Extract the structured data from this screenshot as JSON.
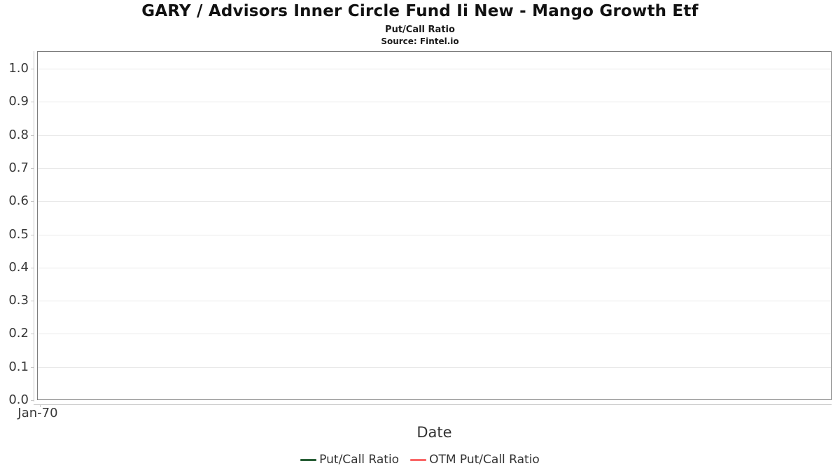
{
  "header": {
    "title": "GARY / Advisors Inner Circle Fund Ii New - Mango Growth Etf",
    "subtitle": "Put/Call Ratio",
    "source": "Source: Fintel.io"
  },
  "chart_data": {
    "type": "line",
    "title": "GARY / Advisors Inner Circle Fund Ii New - Mango Growth Etf",
    "subtitle": "Put/Call Ratio",
    "source": "Source: Fintel.io",
    "xlabel": "Date",
    "ylabel": "",
    "ylim": [
      0.0,
      1.0
    ],
    "yticks": [
      "1.0",
      "0.9",
      "0.8",
      "0.7",
      "0.6",
      "0.5",
      "0.4",
      "0.3",
      "0.2",
      "0.1",
      "0.0"
    ],
    "xticks": [
      "Jan-70"
    ],
    "grid": "horizontal",
    "legend_position": "bottom",
    "series": [
      {
        "name": "Put/Call Ratio",
        "color": "#2a6038",
        "x": [],
        "values": []
      },
      {
        "name": "OTM Put/Call Ratio",
        "color": "#f96868",
        "x": [],
        "values": []
      }
    ]
  },
  "colors": {
    "axis_border": "#7c7c7c",
    "gridline": "#e9e9e9",
    "axis_line": "#c8c8c8",
    "label_text": "#383838",
    "title_text": "#111111"
  }
}
